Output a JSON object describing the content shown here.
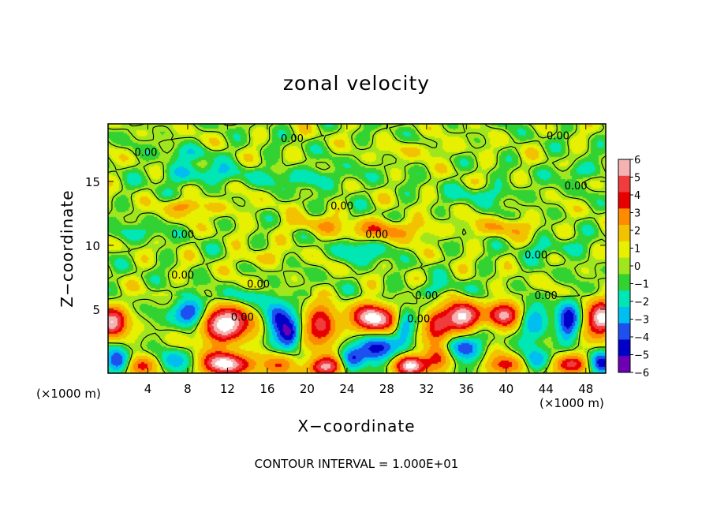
{
  "chart_data": {
    "type": "heatmap",
    "title": "zonal velocity",
    "xlabel": "X−coordinate",
    "ylabel": "Z−coordinate",
    "x_unit_left": "(×1000 m)",
    "x_unit_right": "(×1000 m)",
    "footer": "CONTOUR INTERVAL = 1.000E+01",
    "xlim": [
      0,
      50
    ],
    "ylim": [
      0,
      19.5
    ],
    "xticks": [
      4,
      8,
      12,
      16,
      20,
      24,
      28,
      32,
      36,
      40,
      44,
      48
    ],
    "xtick_labels": [
      "4",
      "8",
      "12",
      "16",
      "20",
      "24",
      "28",
      "32",
      "36",
      "40",
      "44",
      "48"
    ],
    "yticks": [
      5,
      10,
      15
    ],
    "ytick_labels": [
      "5",
      "10",
      "15"
    ],
    "colorbar": {
      "levels": [
        6,
        5,
        4,
        3,
        2,
        1,
        0,
        -1,
        -2,
        -3,
        -4,
        -5,
        -6
      ],
      "labels": [
        "6",
        "5",
        "4",
        "3",
        "2",
        "1",
        "0",
        "−1",
        "−2",
        "−3",
        "−4",
        "−5",
        "−6"
      ],
      "colors": [
        "#f5b2b2",
        "#f03c3c",
        "#e80000",
        "#ff8c00",
        "#f2c200",
        "#e6f000",
        "#a0e61e",
        "#32d232",
        "#00e6b4",
        "#00bef0",
        "#1e50f0",
        "#0000c8",
        "#6e00b4"
      ]
    },
    "contour_labels": [
      {
        "text": "0.00",
        "x": 3.8,
        "z": 17.3
      },
      {
        "text": "0.00",
        "x": 18.5,
        "z": 18.4
      },
      {
        "text": "0.00",
        "x": 45.2,
        "z": 18.6
      },
      {
        "text": "0.00",
        "x": 47.0,
        "z": 14.7
      },
      {
        "text": "0.00",
        "x": 23.5,
        "z": 13.1
      },
      {
        "text": "0.00",
        "x": 7.5,
        "z": 10.9
      },
      {
        "text": "0.00",
        "x": 27.0,
        "z": 10.9
      },
      {
        "text": "0.00",
        "x": 43.0,
        "z": 9.3
      },
      {
        "text": "0.00",
        "x": 7.5,
        "z": 7.7
      },
      {
        "text": "0.00",
        "x": 15.1,
        "z": 7.0
      },
      {
        "text": "0.00",
        "x": 32.0,
        "z": 6.1
      },
      {
        "text": "0.00",
        "x": 44.0,
        "z": 6.1
      },
      {
        "text": "0.00",
        "x": 13.5,
        "z": 4.4
      },
      {
        "text": "0.00",
        "x": 31.2,
        "z": 4.3
      }
    ],
    "features": [
      {
        "x": 11.8,
        "z": 3.8,
        "v": 6.5,
        "rx": 2.8,
        "rz": 1.4
      },
      {
        "x": 11.8,
        "z": 0.7,
        "v": 6.5,
        "rx": 2.4,
        "rz": 0.9
      },
      {
        "x": 8.2,
        "z": 4.7,
        "v": -5,
        "rx": 1.6,
        "rz": 1.1
      },
      {
        "x": 17.0,
        "z": 4.1,
        "v": -4.5,
        "rx": 1.4,
        "rz": 1.6
      },
      {
        "x": 18.3,
        "z": 3.0,
        "v": -4,
        "rx": 1.0,
        "rz": 1.0
      },
      {
        "x": 21.5,
        "z": 3.7,
        "v": 4.5,
        "rx": 1.7,
        "rz": 1.5
      },
      {
        "x": 26.8,
        "z": 4.3,
        "v": 6.5,
        "rx": 2.2,
        "rz": 1.1
      },
      {
        "x": 26.8,
        "z": 1.9,
        "v": -4.5,
        "rx": 2.0,
        "rz": 1.0
      },
      {
        "x": 29.8,
        "z": 3.6,
        "v": -3.5,
        "rx": 1.0,
        "rz": 1.4
      },
      {
        "x": 33.0,
        "z": 3.6,
        "v": 4,
        "rx": 1.3,
        "rz": 1.4
      },
      {
        "x": 35.6,
        "z": 4.4,
        "v": 6.5,
        "rx": 1.8,
        "rz": 1.1
      },
      {
        "x": 35.6,
        "z": 2.0,
        "v": -4,
        "rx": 1.8,
        "rz": 0.9
      },
      {
        "x": 39.8,
        "z": 4.6,
        "v": 5,
        "rx": 1.6,
        "rz": 1.0
      },
      {
        "x": 43.0,
        "z": 3.9,
        "v": -3,
        "rx": 1.4,
        "rz": 1.3
      },
      {
        "x": 46.2,
        "z": 4.1,
        "v": -4.5,
        "rx": 1.1,
        "rz": 1.5
      },
      {
        "x": 49.7,
        "z": 4.2,
        "v": 6.5,
        "rx": 1.6,
        "rz": 1.3
      },
      {
        "x": 0.4,
        "z": 4.0,
        "v": 6,
        "rx": 1.4,
        "rz": 1.2
      },
      {
        "x": 1.0,
        "z": 0.9,
        "v": -4.5,
        "rx": 1.2,
        "rz": 1.0
      },
      {
        "x": 3.5,
        "z": 0.6,
        "v": 4,
        "rx": 1.5,
        "rz": 0.8
      },
      {
        "x": 6.5,
        "z": 1.0,
        "v": -3,
        "rx": 1.4,
        "rz": 0.9
      },
      {
        "x": 17.2,
        "z": 0.7,
        "v": 3,
        "rx": 1.7,
        "rz": 0.9
      },
      {
        "x": 22.0,
        "z": 0.5,
        "v": 6,
        "rx": 1.7,
        "rz": 0.8
      },
      {
        "x": 24.5,
        "z": 1.0,
        "v": -4,
        "rx": 1.2,
        "rz": 0.9
      },
      {
        "x": 30.5,
        "z": 0.6,
        "v": 6,
        "rx": 1.6,
        "rz": 0.8
      },
      {
        "x": 33.0,
        "z": 1.2,
        "v": 3.5,
        "rx": 1.4,
        "rz": 1.0
      },
      {
        "x": 40.0,
        "z": 0.6,
        "v": 3.5,
        "rx": 1.8,
        "rz": 0.8
      },
      {
        "x": 43.0,
        "z": 1.0,
        "v": -3.5,
        "rx": 1.2,
        "rz": 0.9
      },
      {
        "x": 46.5,
        "z": 0.7,
        "v": 4.5,
        "rx": 1.8,
        "rz": 0.8
      },
      {
        "x": 49.5,
        "z": 0.8,
        "v": -4.5,
        "rx": 1.2,
        "rz": 0.9
      },
      {
        "x": 9.0,
        "z": 15.6,
        "v": -2,
        "rx": 4.0,
        "rz": 0.8
      },
      {
        "x": 20.0,
        "z": 15.3,
        "v": -1.5,
        "rx": 5.0,
        "rz": 0.8
      },
      {
        "x": 28.0,
        "z": 11.2,
        "v": 2.5,
        "rx": 4.5,
        "rz": 0.8
      },
      {
        "x": 20.5,
        "z": 11.6,
        "v": 1.5,
        "rx": 3.0,
        "rz": 0.7
      },
      {
        "x": 40.0,
        "z": 11.4,
        "v": 1.8,
        "rx": 3.5,
        "rz": 0.7
      },
      {
        "x": 25.5,
        "z": 9.5,
        "v": -2,
        "rx": 2.5,
        "rz": 0.9
      },
      {
        "x": 10.0,
        "z": 12.9,
        "v": 1.2,
        "rx": 4.0,
        "rz": 0.7
      },
      {
        "x": 15.0,
        "z": 9.0,
        "v": 1.3,
        "rx": 2.5,
        "rz": 0.6
      },
      {
        "x": 8.5,
        "z": 17.2,
        "v": -1.2,
        "rx": 3.0,
        "rz": 0.6
      },
      {
        "x": 38.0,
        "z": 14.0,
        "v": -1.3,
        "rx": 4.0,
        "rz": 0.7
      },
      {
        "x": 45.0,
        "z": 9.8,
        "v": -1.5,
        "rx": 3.0,
        "rz": 0.7
      },
      {
        "x": 32.0,
        "z": 17.5,
        "v": 1.0,
        "rx": 4.0,
        "rz": 0.6
      },
      {
        "x": 3.0,
        "z": 11.0,
        "v": -1.2,
        "rx": 2.5,
        "rz": 0.7
      },
      {
        "x": 7.5,
        "z": 13.1,
        "v": 1.8,
        "rx": 1.5,
        "rz": 0.5
      },
      {
        "x": 47.0,
        "z": 15.8,
        "v": -1.6,
        "rx": 2.0,
        "rz": 0.6
      },
      {
        "x": 13.5,
        "z": 6.0,
        "v": -1.4,
        "rx": 3.0,
        "rz": 0.6
      },
      {
        "x": 33.0,
        "z": 6.6,
        "v": -1.2,
        "rx": 3.0,
        "rz": 0.6
      }
    ]
  }
}
